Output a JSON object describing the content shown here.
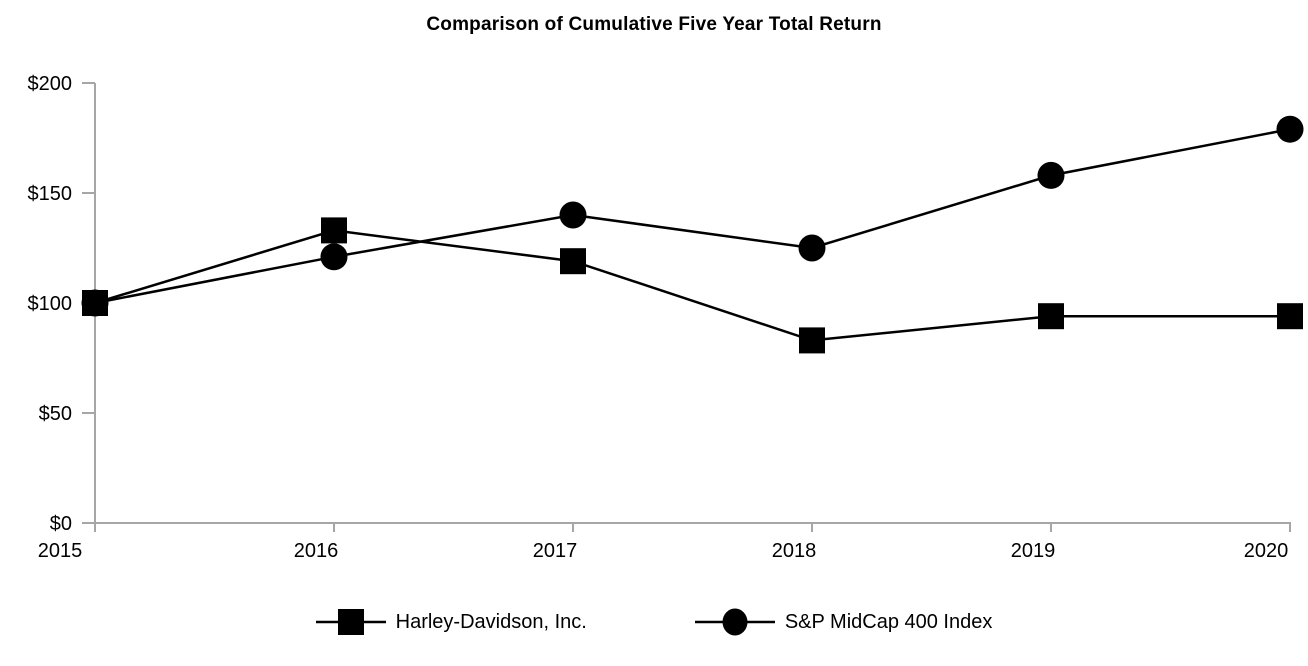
{
  "chart_data": {
    "type": "line",
    "title": "Comparison of Cumulative Five Year Total Return",
    "categories": [
      "2015",
      "2016",
      "2017",
      "2018",
      "2019",
      "2020"
    ],
    "series": [
      {
        "name": "Harley-Davidson, Inc.",
        "marker": "square",
        "color": "#000000",
        "values": [
          100,
          133,
          119,
          83,
          94,
          94
        ]
      },
      {
        "name": "S&P MidCap 400 Index",
        "marker": "circle",
        "color": "#000000",
        "values": [
          100,
          121,
          140,
          125,
          158,
          179
        ]
      }
    ],
    "xlabel": "",
    "ylabel": "",
    "ylim": [
      0,
      200
    ],
    "y_ticks": [
      0,
      50,
      100,
      150,
      200
    ],
    "y_tick_labels": [
      "$0",
      "$50",
      "$100",
      "$150",
      "$200"
    ],
    "grid": false,
    "legend_position": "bottom-center",
    "axis_color": "#a6a6a6",
    "text_color": "#000000"
  }
}
